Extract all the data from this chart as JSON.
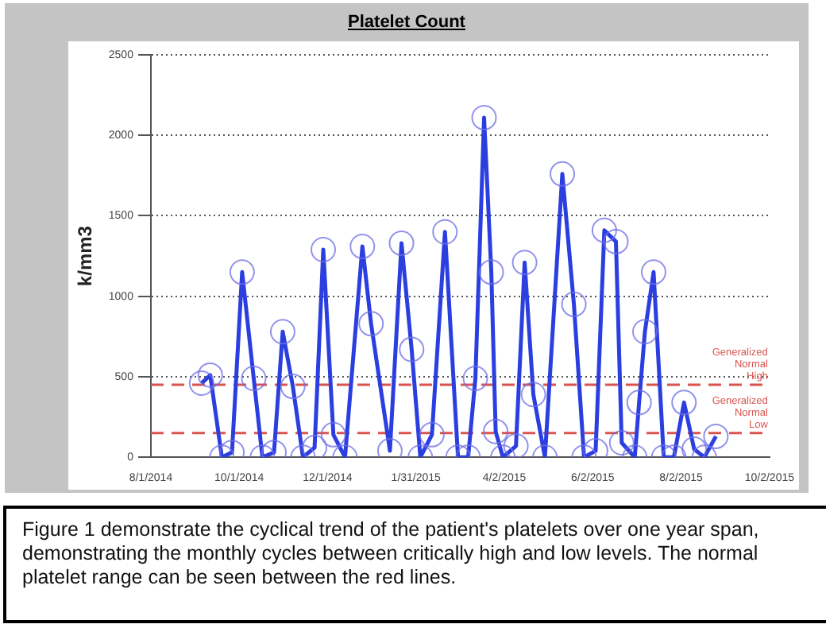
{
  "chart_data": {
    "type": "line",
    "title": "Platelet Count",
    "ylabel": "k/mm3",
    "annotations": [
      "Figure 1 demonstrate the cyclical trend of the patient's platelets over one year span, demonstrating the monthly cycles between critically high and low levels. The normal platelet range can be seen between the red lines."
    ],
    "series": [
      {
        "color": "#2b3fe0",
        "marker": "circle",
        "line_style": "solid",
        "x": [
          "2014-09-05",
          "2014-09-11",
          "2014-09-19",
          "2014-09-26",
          "2014-10-03",
          "2014-10-11",
          "2014-10-17",
          "2014-10-25",
          "2014-10-31",
          "2014-11-07",
          "2014-11-14",
          "2014-11-22",
          "2014-11-28",
          "2014-12-05",
          "2014-12-13",
          "2014-12-25",
          "2014-12-31",
          "2015-01-13",
          "2015-01-21",
          "2015-01-28",
          "2015-02-03",
          "2015-02-11",
          "2015-02-20",
          "2015-03-01",
          "2015-03-08",
          "2015-03-13",
          "2015-03-19",
          "2015-03-24",
          "2015-03-27",
          "2015-04-01",
          "2015-04-10",
          "2015-04-16",
          "2015-04-22",
          "2015-04-30",
          "2015-05-12",
          "2015-05-20",
          "2015-05-27",
          "2015-06-04",
          "2015-06-10",
          "2015-06-18",
          "2015-06-22",
          "2015-07-01",
          "2015-07-04",
          "2015-07-08",
          "2015-07-14",
          "2015-07-21",
          "2015-07-28",
          "2015-08-04",
          "2015-08-11",
          "2015-08-18",
          "2015-08-26"
        ],
        "values": [
          460,
          510,
          0,
          30,
          1150,
          490,
          0,
          30,
          780,
          440,
          0,
          60,
          1290,
          140,
          0,
          1310,
          830,
          40,
          1330,
          670,
          0,
          140,
          1400,
          0,
          0,
          490,
          2110,
          1150,
          160,
          0,
          70,
          1210,
          390,
          0,
          1760,
          950,
          0,
          40,
          1410,
          1340,
          90,
          0,
          340,
          780,
          1150,
          0,
          0,
          340,
          50,
          0,
          130
        ]
      }
    ],
    "xlim": [
      "2014-08-01",
      "2015-10-02"
    ],
    "xticks": [
      {
        "value": "2014-08-01",
        "label": "8/1/2014"
      },
      {
        "value": "2014-10-01",
        "label": "10/1/2014"
      },
      {
        "value": "2014-12-01",
        "label": "12/1/2014"
      },
      {
        "value": "2015-01-31",
        "label": "1/31/2015"
      },
      {
        "value": "2015-04-02",
        "label": "4/2/2015"
      },
      {
        "value": "2015-06-02",
        "label": "6/2/2015"
      },
      {
        "value": "2015-08-02",
        "label": "8/2/2015"
      },
      {
        "value": "2015-10-02",
        "label": "10/2/2015"
      }
    ],
    "ylim": [
      0,
      2500
    ],
    "yticks": [
      0,
      500,
      1000,
      1500,
      2000,
      2500
    ],
    "grid": "y",
    "legend": false,
    "ref_lines": [
      {
        "axis": "y",
        "value": 450,
        "label": "Generalized Normal High",
        "color": "#d9534f",
        "line_style": "dashed"
      },
      {
        "axis": "y",
        "value": 150,
        "label": "Generalized Normal Low",
        "color": "#d9534f",
        "line_style": "dashed"
      }
    ]
  }
}
